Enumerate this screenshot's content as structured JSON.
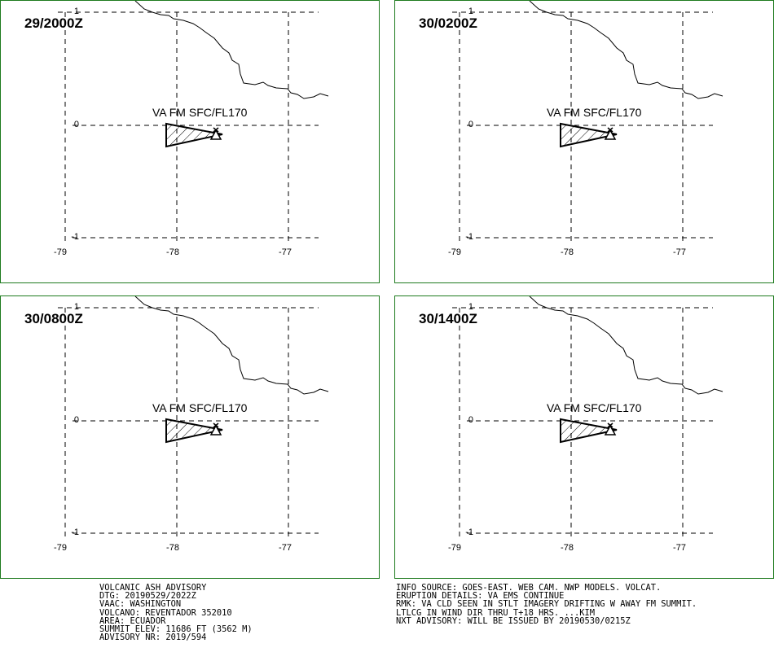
{
  "panels": [
    {
      "time": "29/2000Z",
      "cloud_label": "VA FM SFC/FL170"
    },
    {
      "time": "30/0200Z",
      "cloud_label": "VA FM SFC/FL170"
    },
    {
      "time": "30/0800Z",
      "cloud_label": "VA FM SFC/FL170"
    },
    {
      "time": "30/1400Z",
      "cloud_label": "VA FM SFC/FL170"
    }
  ],
  "lat_ticks": [
    "1",
    "0",
    "-1"
  ],
  "lon_ticks": [
    "-79",
    "-78",
    "-77"
  ],
  "advisory_left": [
    "VOLCANIC ASH ADVISORY",
    "DTG: 20190529/2022Z",
    "VAAC: WASHINGTON",
    "VOLCANO: REVENTADOR 352010",
    "AREA: ECUADOR",
    "SUMMIT ELEV: 11686 FT (3562 M)",
    "ADVISORY NR: 2019/594"
  ],
  "advisory_right": [
    "INFO SOURCE: GOES-EAST. WEB CAM. NWP MODELS. VOLCAT.",
    "ERUPTION DETAILS: VA EMS CONTINUE",
    "RMK: VA CLD SEEN IN STLT IMAGERY DRIFTING W AWAY FM SUMMIT.",
    "LTLCG IN WIND DIR THRU T+18 HRS. ...KIM",
    "NXT ADVISORY: WILL BE ISSUED BY 20190530/0215Z"
  ],
  "colors": {
    "border": "#1e7b1e",
    "lines": "#000000"
  },
  "symbols": {
    "volcano": "volcano-triangle-icon"
  }
}
